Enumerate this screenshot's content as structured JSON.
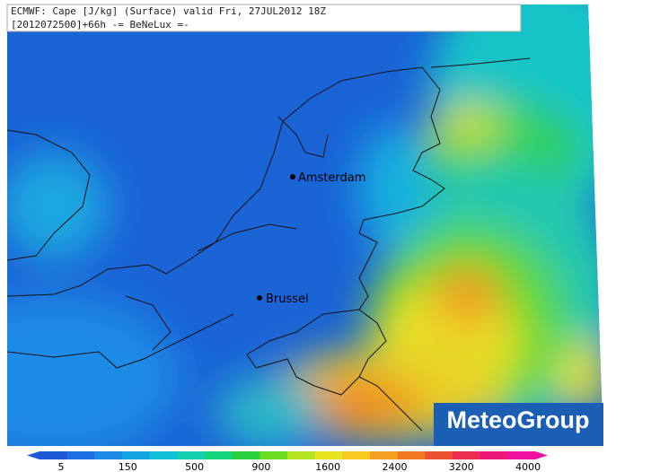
{
  "header": {
    "line1": "ECMWF: Cape [J/kg] (Surface) valid Fri, 27JUL2012 18Z",
    "line2": "[2012072500]+66h -= BeNeLux =-"
  },
  "cities": [
    {
      "label": "Amsterdam"
    },
    {
      "label": "Brussel"
    }
  ],
  "legend": {
    "ticks": [
      5,
      150,
      500,
      900,
      1600,
      2400,
      3200,
      4000
    ]
  },
  "logo": "MeteoGroup"
}
